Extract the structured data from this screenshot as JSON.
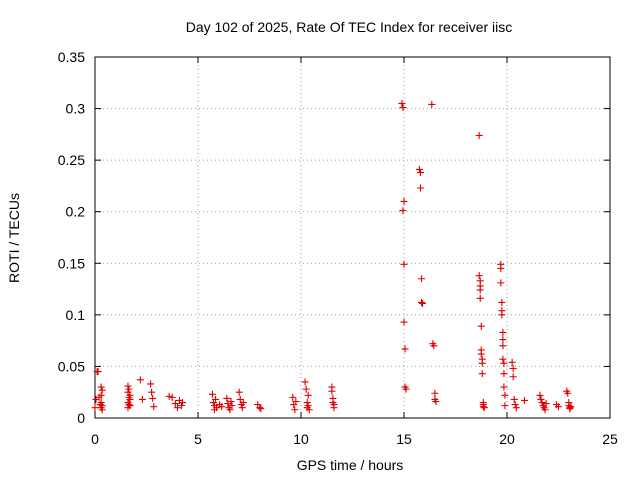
{
  "chart_data": {
    "type": "scatter",
    "title": "Day 102 of 2025, Rate Of TEC Index for receiver iisc",
    "xlabel": "GPS time / hours",
    "ylabel": "ROTI / TECUs",
    "xlim": [
      0,
      25
    ],
    "ylim": [
      0,
      0.35
    ],
    "grid": true,
    "marker": "+",
    "marker_color": "#e00000",
    "x_ticks": [
      0,
      5,
      10,
      15,
      20,
      25
    ],
    "x_tick_labels": [
      "0",
      "5",
      "10",
      "15",
      "20",
      "25"
    ],
    "y_ticks": [
      0,
      0.05,
      0.1,
      0.15,
      0.2,
      0.25,
      0.3,
      0.35
    ],
    "y_tick_labels": [
      "0",
      "0.05",
      "0.1",
      "0.15",
      "0.2",
      "0.25",
      "0.3",
      "0.35"
    ],
    "series": [
      {
        "name": "ROTI",
        "x": [
          0.0,
          0.05,
          0.1,
          0.15,
          0.2,
          0.25,
          0.3,
          0.3,
          0.3,
          0.3,
          0.35,
          0.35,
          0.35,
          1.6,
          1.6,
          1.6,
          1.6,
          1.65,
          1.65,
          1.65,
          1.7,
          1.7,
          1.7,
          2.2,
          2.3,
          2.7,
          2.75,
          2.8,
          2.85,
          3.6,
          3.75,
          3.9,
          4.0,
          4.1,
          4.2,
          4.25,
          5.7,
          5.75,
          5.8,
          5.8,
          5.85,
          5.9,
          6.05,
          6.15,
          6.4,
          6.45,
          6.5,
          6.55,
          6.6,
          6.65,
          7.0,
          7.05,
          7.1,
          7.15,
          7.2,
          7.9,
          8.0,
          8.05,
          9.6,
          9.65,
          9.7,
          9.75,
          10.2,
          10.25,
          10.3,
          10.3,
          10.35,
          10.35,
          10.4,
          11.5,
          11.5,
          11.55,
          11.55,
          11.6,
          11.6,
          14.9,
          14.95,
          14.95,
          15.0,
          15.0,
          15.0,
          15.05,
          15.05,
          15.1,
          15.75,
          15.8,
          15.8,
          15.85,
          15.85,
          15.9,
          16.35,
          16.4,
          16.45,
          16.5,
          16.5,
          16.55,
          18.65,
          18.65,
          18.7,
          18.7,
          18.7,
          18.7,
          18.75,
          18.75,
          18.75,
          18.8,
          18.8,
          18.8,
          18.85,
          18.85,
          18.85,
          18.9,
          19.7,
          19.7,
          19.7,
          19.75,
          19.75,
          19.75,
          19.8,
          19.8,
          19.8,
          19.8,
          19.85,
          19.85,
          19.85,
          19.9,
          19.9,
          20.25,
          20.3,
          20.3,
          20.35,
          20.4,
          20.45,
          20.85,
          21.6,
          21.65,
          21.7,
          21.75,
          21.8,
          21.85,
          21.9,
          22.4,
          22.5,
          22.9,
          22.95,
          23.0,
          23.0,
          23.05,
          23.05,
          23.1
        ],
        "y": [
          0.01,
          0.018,
          0.045,
          0.045,
          0.02,
          0.013,
          0.03,
          0.022,
          0.015,
          0.01,
          0.027,
          0.012,
          0.008,
          0.031,
          0.025,
          0.015,
          0.01,
          0.02,
          0.013,
          0.028,
          0.018,
          0.022,
          0.012,
          0.037,
          0.018,
          0.033,
          0.025,
          0.019,
          0.011,
          0.021,
          0.02,
          0.014,
          0.01,
          0.017,
          0.012,
          0.015,
          0.023,
          0.015,
          0.012,
          0.008,
          0.018,
          0.01,
          0.013,
          0.011,
          0.019,
          0.014,
          0.01,
          0.008,
          0.016,
          0.012,
          0.025,
          0.018,
          0.013,
          0.01,
          0.015,
          0.013,
          0.01,
          0.009,
          0.02,
          0.013,
          0.008,
          0.016,
          0.035,
          0.028,
          0.015,
          0.01,
          0.022,
          0.012,
          0.008,
          0.03,
          0.026,
          0.019,
          0.015,
          0.013,
          0.01,
          0.305,
          0.301,
          0.201,
          0.21,
          0.149,
          0.093,
          0.067,
          0.03,
          0.028,
          0.241,
          0.238,
          0.223,
          0.135,
          0.112,
          0.111,
          0.304,
          0.072,
          0.07,
          0.024,
          0.018,
          0.016,
          0.274,
          0.138,
          0.133,
          0.128,
          0.124,
          0.116,
          0.089,
          0.066,
          0.062,
          0.057,
          0.053,
          0.043,
          0.015,
          0.013,
          0.011,
          0.01,
          0.149,
          0.145,
          0.131,
          0.112,
          0.104,
          0.1,
          0.083,
          0.076,
          0.07,
          0.057,
          0.053,
          0.043,
          0.03,
          0.022,
          0.012,
          0.054,
          0.048,
          0.04,
          0.018,
          0.013,
          0.01,
          0.017,
          0.022,
          0.018,
          0.015,
          0.012,
          0.01,
          0.008,
          0.014,
          0.013,
          0.011,
          0.026,
          0.024,
          0.015,
          0.012,
          0.01,
          0.009,
          0.011
        ]
      }
    ]
  }
}
